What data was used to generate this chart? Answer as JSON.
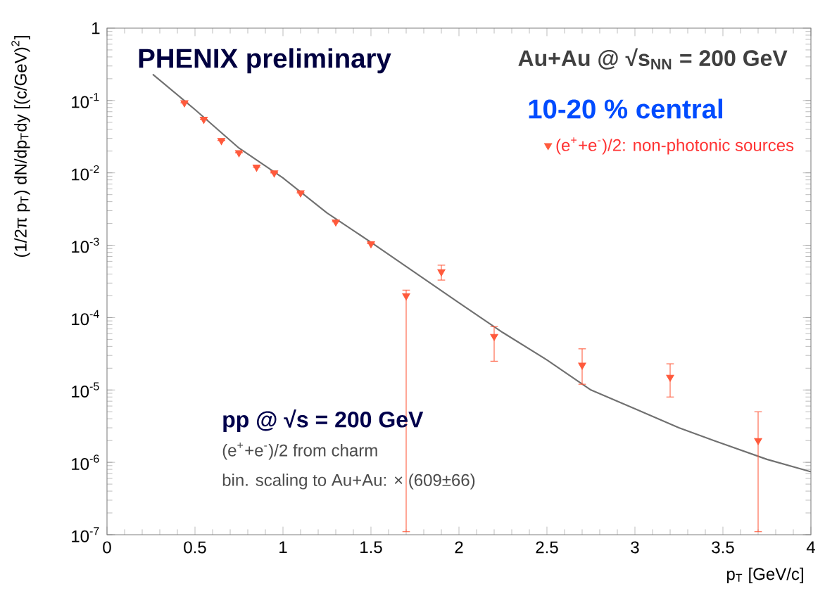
{
  "chart_data": {
    "type": "scatter",
    "xlabel": "p$_{T}$ [GeV/c]",
    "ylabel": "(1/2π p$_{T}$) dN/dp$_{T}$dy [(c/GeV)$^{2}$]",
    "annotations": [
      "PHENIX preliminary",
      "Au+Au @ √s$_{NN}$ = 200 GeV",
      "10-20 % central",
      "pp @ √s = 200 GeV",
      "(e$^{+}$+e$^{-}$)/2 from charm",
      "bin. scaling to Au+Au: × (609±66)"
    ],
    "log": "y",
    "grid": false,
    "legend": "top right",
    "xlim": [
      0,
      4
    ],
    "ylim": [
      1e-07,
      1
    ],
    "xticks": [
      0,
      0.5,
      1,
      1.5,
      2,
      2.5,
      3,
      3.5,
      4
    ],
    "yticks": [
      {
        "value": 1e-07,
        "label": "10$^{-7}$"
      },
      {
        "value": 1e-06,
        "label": "10$^{-6}$"
      },
      {
        "value": 1e-05,
        "label": "10$^{-5}$"
      },
      {
        "value": 0.0001,
        "label": "10$^{-4}$"
      },
      {
        "value": 0.001,
        "label": "10$^{-3}$"
      },
      {
        "value": 0.01,
        "label": "10$^{-2}$"
      },
      {
        "value": 0.1,
        "label": "10$^{-1}$"
      },
      {
        "value": 1,
        "label": "1"
      }
    ],
    "series": [
      {
        "type": "line",
        "color": "#707070",
        "marker": "none",
        "line_style": "solid",
        "x": [
          0.26,
          0.5,
          0.75,
          1.0,
          1.25,
          1.5,
          1.75,
          2.0,
          2.25,
          2.5,
          2.75,
          3.0,
          3.25,
          3.5,
          3.75,
          4.0
        ],
        "values": [
          0.23,
          0.075,
          0.022,
          0.0085,
          0.0028,
          0.0011,
          0.00042,
          0.00016,
          6.2e-05,
          2.6e-05,
          1e-05,
          5.5e-06,
          3e-06,
          1.8e-06,
          1.1e-06,
          7.4e-07
        ]
      },
      {
        "name": "(e$^{+}$+e$^{-}$)/2: non-photonic sources",
        "color": "#ff5a3c",
        "marker": "triangle",
        "x": [
          0.44,
          0.55,
          0.65,
          0.75,
          0.85,
          0.95,
          1.1,
          1.3,
          1.5,
          1.7,
          1.9,
          2.2,
          2.7,
          3.2,
          3.7
        ],
        "values": [
          0.093,
          0.055,
          0.028,
          0.019,
          0.012,
          0.01,
          0.0053,
          0.0021,
          0.00105,
          0.0002,
          0.00043,
          5.5e-05,
          2.2e-05,
          1.5e-05,
          2e-06
        ],
        "errors": [
          null,
          null,
          null,
          null,
          null,
          null,
          null,
          null,
          null,
          [
            1.1e-07,
            0.00024
          ],
          [
            0.00033,
            0.00053
          ],
          [
            2.5e-05,
            7.5e-05
          ],
          [
            1.2e-05,
            3.7e-05
          ],
          [
            8e-06,
            2.3e-05
          ],
          [
            1.1e-07,
            5e-06
          ]
        ]
      }
    ]
  }
}
